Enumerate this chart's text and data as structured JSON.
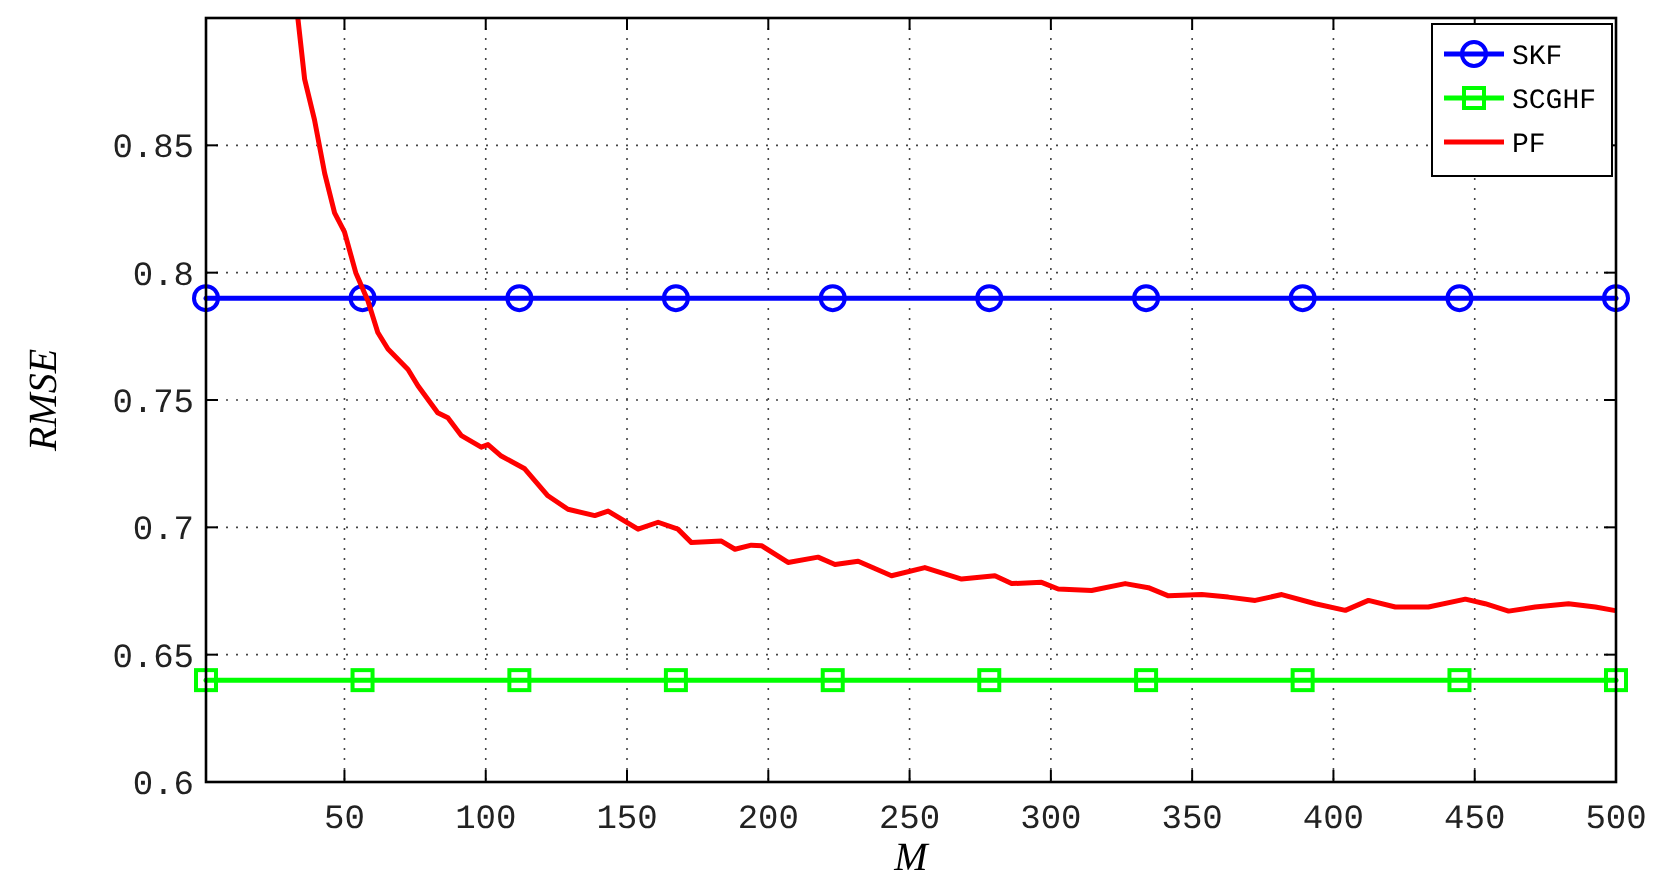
{
  "chart_data": {
    "type": "line",
    "xlabel": "M",
    "ylabel": "RMSE",
    "xlim": [
      1,
      500
    ],
    "ylim": [
      0.6,
      0.9
    ],
    "xticks": [
      50,
      100,
      150,
      200,
      250,
      300,
      350,
      400,
      450,
      500
    ],
    "yticks": [
      0.6,
      0.65,
      0.7,
      0.75,
      0.8,
      0.85
    ],
    "grid": true,
    "legend": "top right",
    "line_style": "solid",
    "series": [
      {
        "name": "SKF",
        "color": "#0000ff",
        "marker": "circle",
        "x": [
          1,
          56.4,
          111.9,
          167.3,
          222.8,
          278.2,
          333.7,
          389.1,
          444.6,
          500
        ],
        "values": [
          0.79,
          0.79,
          0.79,
          0.79,
          0.79,
          0.79,
          0.79,
          0.79,
          0.79,
          0.79
        ]
      },
      {
        "name": "SCGHF",
        "color": "#00ff00",
        "marker": "square",
        "x": [
          1,
          56.4,
          111.9,
          167.3,
          222.8,
          278.2,
          333.7,
          389.1,
          444.6,
          500
        ],
        "values": [
          0.64,
          0.64,
          0.64,
          0.64,
          0.64,
          0.64,
          0.64,
          0.64,
          0.64,
          0.64
        ]
      },
      {
        "name": "PF",
        "color": "#ff0000",
        "marker": "none",
        "x": [
          33.5,
          35.9,
          39.4,
          43,
          46.5,
          50,
          54,
          58.3,
          61.8,
          65.4,
          72.5,
          76,
          83,
          86.6,
          91.4,
          98.4,
          100.8,
          105.5,
          113.8,
          122,
          129.1,
          138.6,
          143.3,
          153.9,
          161,
          168,
          172.8,
          183.4,
          188.2,
          194,
          197.6,
          207,
          217.6,
          223.6,
          231.8,
          243.6,
          255.4,
          268.4,
          280.2,
          286.1,
          296.7,
          302.6,
          314.4,
          326.3,
          334.5,
          341.6,
          353.4,
          362.8,
          372.3,
          381.7,
          393.6,
          404.2,
          412.4,
          421.9,
          433.6,
          446.7,
          453.7,
          462,
          471.4,
          483.2,
          492.7,
          499.3
        ],
        "values": [
          0.9,
          0.876,
          0.86,
          0.839,
          0.8235,
          0.816,
          0.8,
          0.789,
          0.7765,
          0.77,
          0.762,
          0.7556,
          0.745,
          0.743,
          0.736,
          0.7315,
          0.7325,
          0.728,
          0.723,
          0.7124,
          0.7071,
          0.7046,
          0.7064,
          0.6993,
          0.702,
          0.6993,
          0.694,
          0.6946,
          0.6914,
          0.693,
          0.6928,
          0.6862,
          0.6883,
          0.6854,
          0.6867,
          0.681,
          0.6842,
          0.6797,
          0.681,
          0.6779,
          0.6784,
          0.6758,
          0.6752,
          0.6779,
          0.6763,
          0.6731,
          0.6736,
          0.6726,
          0.6713,
          0.6736,
          0.67,
          0.6674,
          0.6713,
          0.6687,
          0.6687,
          0.6718,
          0.67,
          0.6671,
          0.6687,
          0.67,
          0.6687,
          0.6674
        ]
      }
    ]
  }
}
